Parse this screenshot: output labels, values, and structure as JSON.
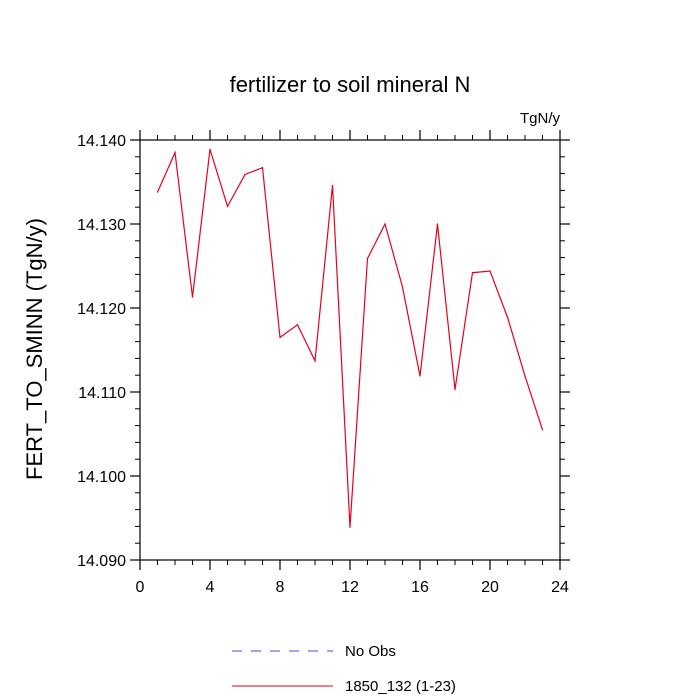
{
  "colors": {
    "series_line": "#e8001c",
    "obs_line": "#4b4bd6",
    "axes": "#000000",
    "background": "#ffffff"
  },
  "chart_data": {
    "type": "line",
    "title": "fertilizer to soil mineral N",
    "units": "TgN/y",
    "xlabel": "",
    "ylabel": "FERT_TO_SMINN  (TgN/y)",
    "xlim": [
      0,
      24
    ],
    "ylim": [
      14.09,
      14.14
    ],
    "x_ticks": [
      0,
      4,
      8,
      12,
      16,
      20,
      24
    ],
    "x_tick_labels": [
      "0",
      "4",
      "8",
      "12",
      "16",
      "20",
      "24"
    ],
    "y_ticks": [
      14.09,
      14.1,
      14.11,
      14.12,
      14.13,
      14.14
    ],
    "y_tick_labels": [
      "14.090",
      "14.100",
      "14.110",
      "14.120",
      "14.130",
      "14.140"
    ],
    "grid": false,
    "legend_position": "bottom",
    "legend": [
      {
        "name": "No Obs",
        "style": "dashed"
      },
      {
        "name": "1850_132 (1-23)",
        "style": "solid"
      }
    ],
    "series": [
      {
        "name": "1850_132 (1-23)",
        "x": [
          1,
          2,
          3,
          4,
          5,
          6,
          7,
          8,
          9,
          10,
          11,
          12,
          13,
          14,
          15,
          16,
          17,
          18,
          19,
          20,
          21,
          22,
          23
        ],
        "values": [
          14.1338,
          14.1385,
          14.1213,
          14.1389,
          14.1321,
          14.1359,
          14.1367,
          14.1165,
          14.118,
          14.1137,
          14.1346,
          14.0939,
          14.1259,
          14.13,
          14.1225,
          14.1119,
          14.13,
          14.1103,
          14.1242,
          14.1244,
          14.1189,
          14.1119,
          14.1055
        ]
      }
    ]
  }
}
